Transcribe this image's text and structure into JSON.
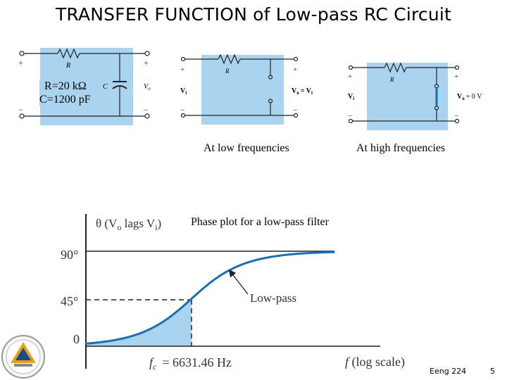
{
  "title": "TRANSFER FUNCTION of Low-pass RC Circuit",
  "circuit1": {
    "resistor_label": "R",
    "capacitor_label": "C",
    "output_label": "V",
    "output_sub": "o",
    "plus": "+",
    "minus": "−",
    "values_line1": "R=20 kΩ",
    "values_line2": "C=1200 pF"
  },
  "circuit2": {
    "resistor_label": "R",
    "input_label": "V",
    "input_sub": "i",
    "output_label": "V",
    "output_sub": "o",
    "eq": "= V",
    "eq_sub": "i",
    "plus": "+",
    "minus": "−"
  },
  "circuit3": {
    "resistor_label": "R",
    "input_label": "V",
    "input_sub": "i",
    "output_label": "V",
    "output_sub": "o",
    "eq": "= 0 V",
    "plus": "+",
    "minus": "−"
  },
  "captions": {
    "low": "At low frequencies",
    "high": "At high frequencies",
    "phase": "Phase plot for a low-pass filter"
  },
  "chart_data": {
    "type": "line",
    "ylabel": "θ (V",
    "ylabel_sub_o": "o",
    "ylabel_mid": " lags V",
    "ylabel_sub_i": "i",
    "ylabel_end": ")",
    "xlabel": "f",
    "xlabel_suffix": " (log scale)",
    "y_ticks": [
      "90°",
      "45°",
      "0"
    ],
    "fc_label": "f",
    "fc_sub": "c",
    "fc_value": "= 6631.46 Hz",
    "annotation": "Low-pass",
    "x_decades_relative_to_fc": [
      -2,
      -1.5,
      -1,
      -0.5,
      0,
      0.5,
      1,
      1.5,
      2
    ],
    "y_degrees": [
      0.57,
      1.8,
      5.7,
      17.5,
      45,
      72.5,
      84.3,
      88.2,
      89.4
    ]
  },
  "footer": {
    "course": "Eeng 224",
    "page": "5"
  },
  "colors": {
    "panel": "#a9d3ee",
    "curve": "#1a6fb3",
    "shade": "#a9d3ee"
  }
}
